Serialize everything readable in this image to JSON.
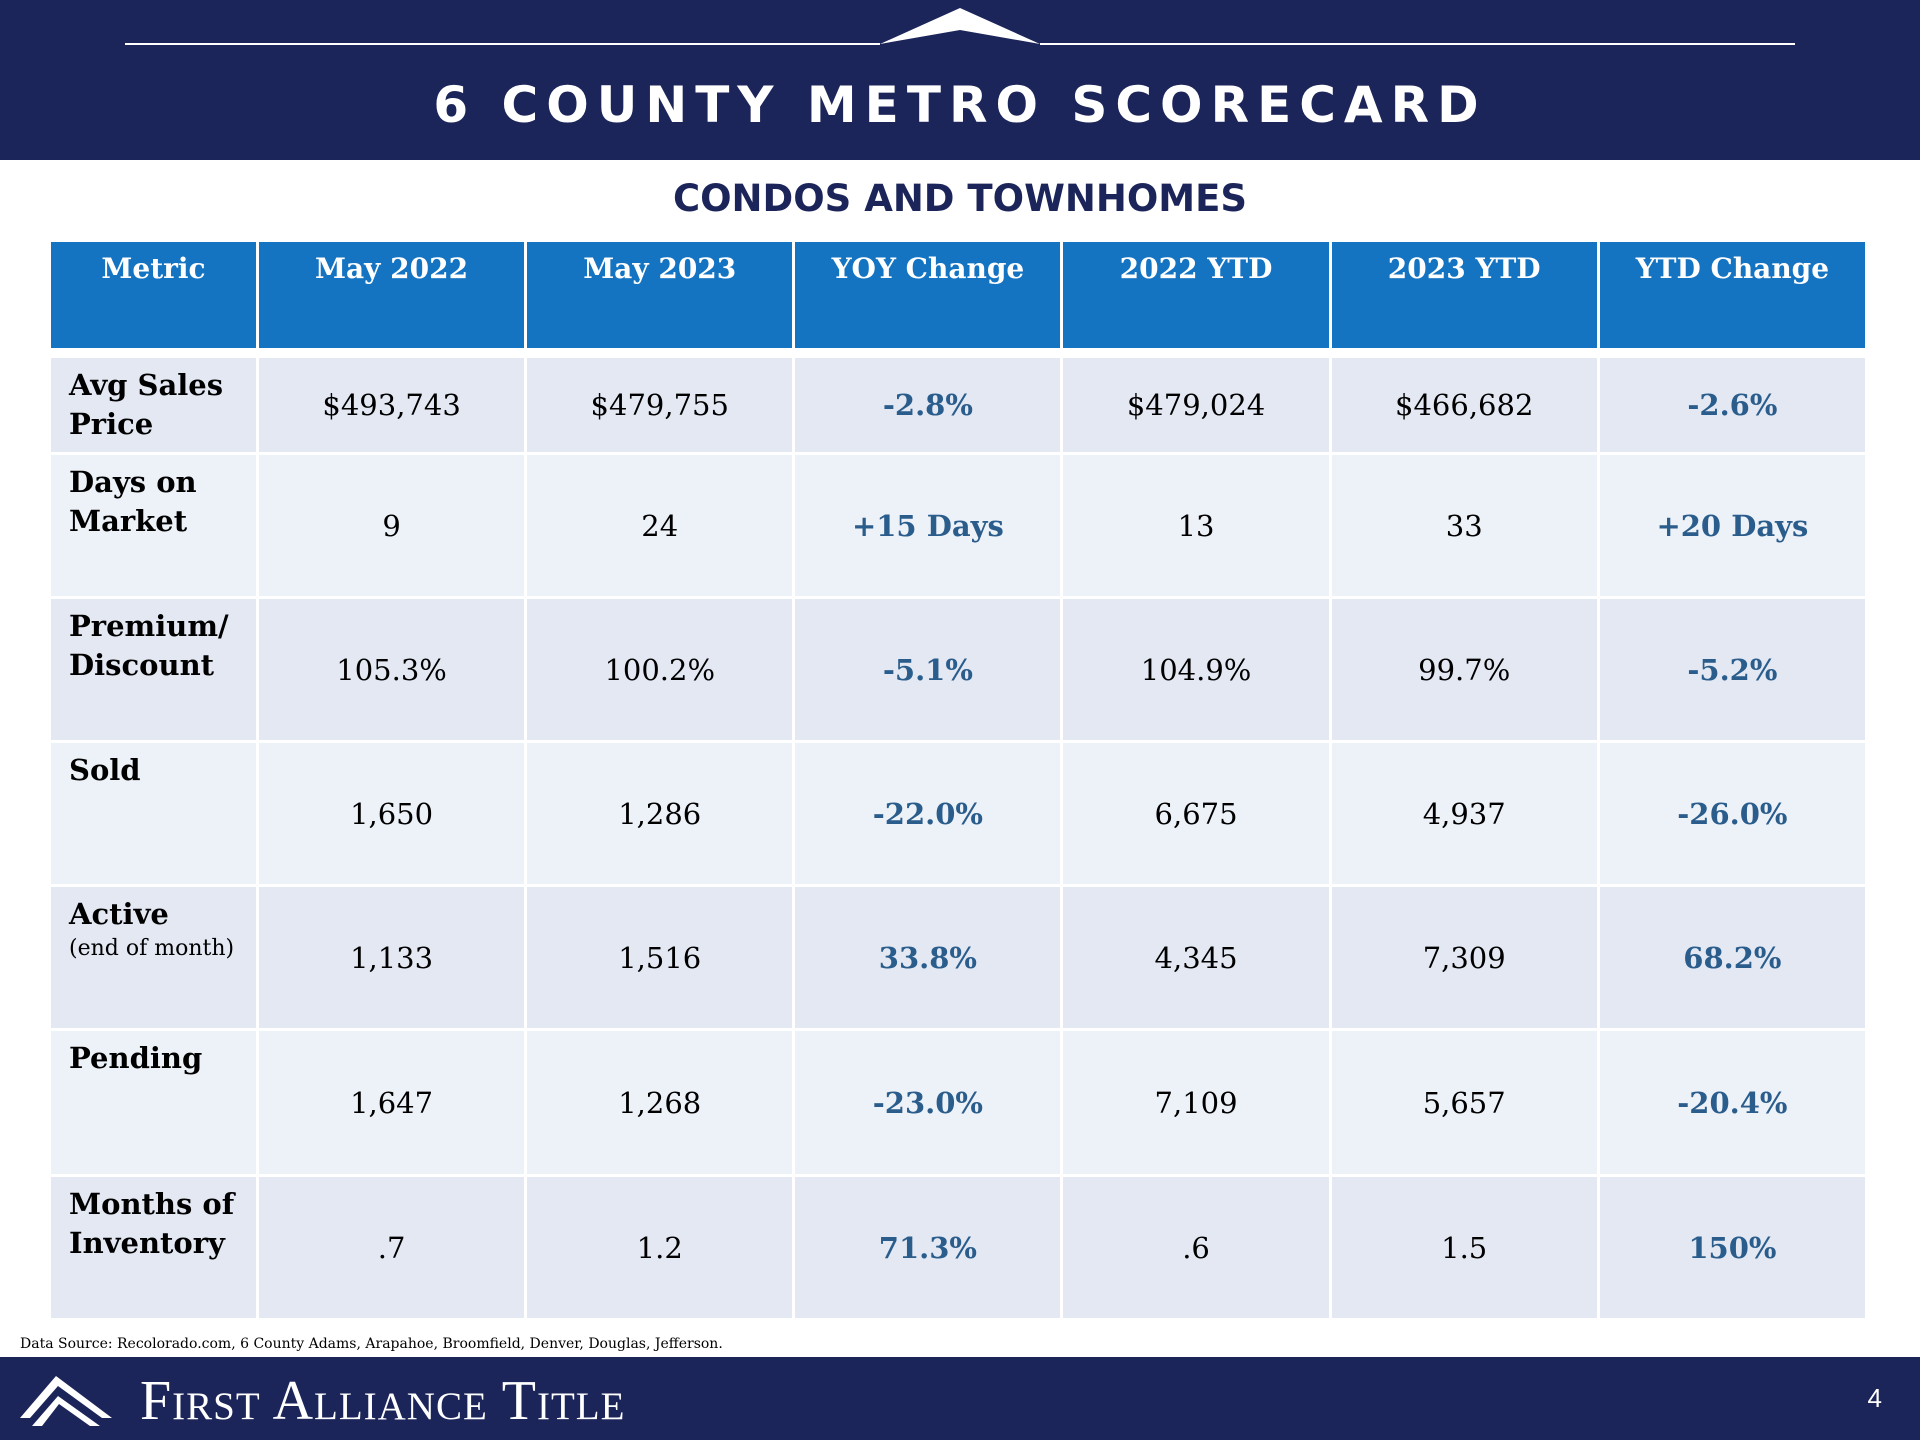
{
  "header": {
    "title": "6 COUNTY METRO SCORECARD",
    "subtitle": "CONDOS AND TOWNHOMES"
  },
  "table": {
    "columns": [
      "Metric",
      "May 2022",
      "May 2023",
      "YOY Change",
      "2022 YTD",
      "2023 YTD",
      "YTD Change"
    ],
    "rows": [
      {
        "metric": "Avg Sales Price",
        "sub": "",
        "may2022": "$493,743",
        "may2023": "$479,755",
        "yoy": "-2.8%",
        "ytd2022": "$479,024",
        "ytd2023": "$466,682",
        "ytd_change": "-2.6%"
      },
      {
        "metric": "Days on Market",
        "sub": "",
        "may2022": "9",
        "may2023": "24",
        "yoy": "+15 Days",
        "ytd2022": "13",
        "ytd2023": "33",
        "ytd_change": "+20 Days"
      },
      {
        "metric": "Premium/ Discount",
        "sub": "",
        "may2022": "105.3%",
        "may2023": "100.2%",
        "yoy": "-5.1%",
        "ytd2022": "104.9%",
        "ytd2023": "99.7%",
        "ytd_change": "-5.2%"
      },
      {
        "metric": "Sold",
        "sub": "",
        "may2022": "1,650",
        "may2023": "1,286",
        "yoy": "-22.0%",
        "ytd2022": "6,675",
        "ytd2023": "4,937",
        "ytd_change": "-26.0%"
      },
      {
        "metric": "Active",
        "sub": "(end of month)",
        "may2022": "1,133",
        "may2023": "1,516",
        "yoy": "33.8%",
        "ytd2022": "4,345",
        "ytd2023": "7,309",
        "ytd_change": "68.2%"
      },
      {
        "metric": "Pending",
        "sub": "",
        "may2022": "1,647",
        "may2023": "1,268",
        "yoy": "-23.0%",
        "ytd2022": "7,109",
        "ytd2023": "5,657",
        "ytd_change": "-20.4%"
      },
      {
        "metric": "Months of Inventory",
        "sub": "",
        "may2022": ".7",
        "may2023": "1.2",
        "yoy": "71.3%",
        "ytd2022": ".6",
        "ytd2023": "1.5",
        "ytd_change": "150%"
      }
    ]
  },
  "footer": {
    "source": "Data Source: Recolorado.com, 6 County Adams, Arapahoe, Broomfield, Denver, Douglas, Jefferson.",
    "brand": "First Alliance Title",
    "page_number": "4"
  },
  "colors": {
    "navy": "#1c2559",
    "header_blue": "#1574c2",
    "change_text": "#2a5d8c",
    "row_odd": "#e3e8f3",
    "row_even": "#edf1f8"
  }
}
